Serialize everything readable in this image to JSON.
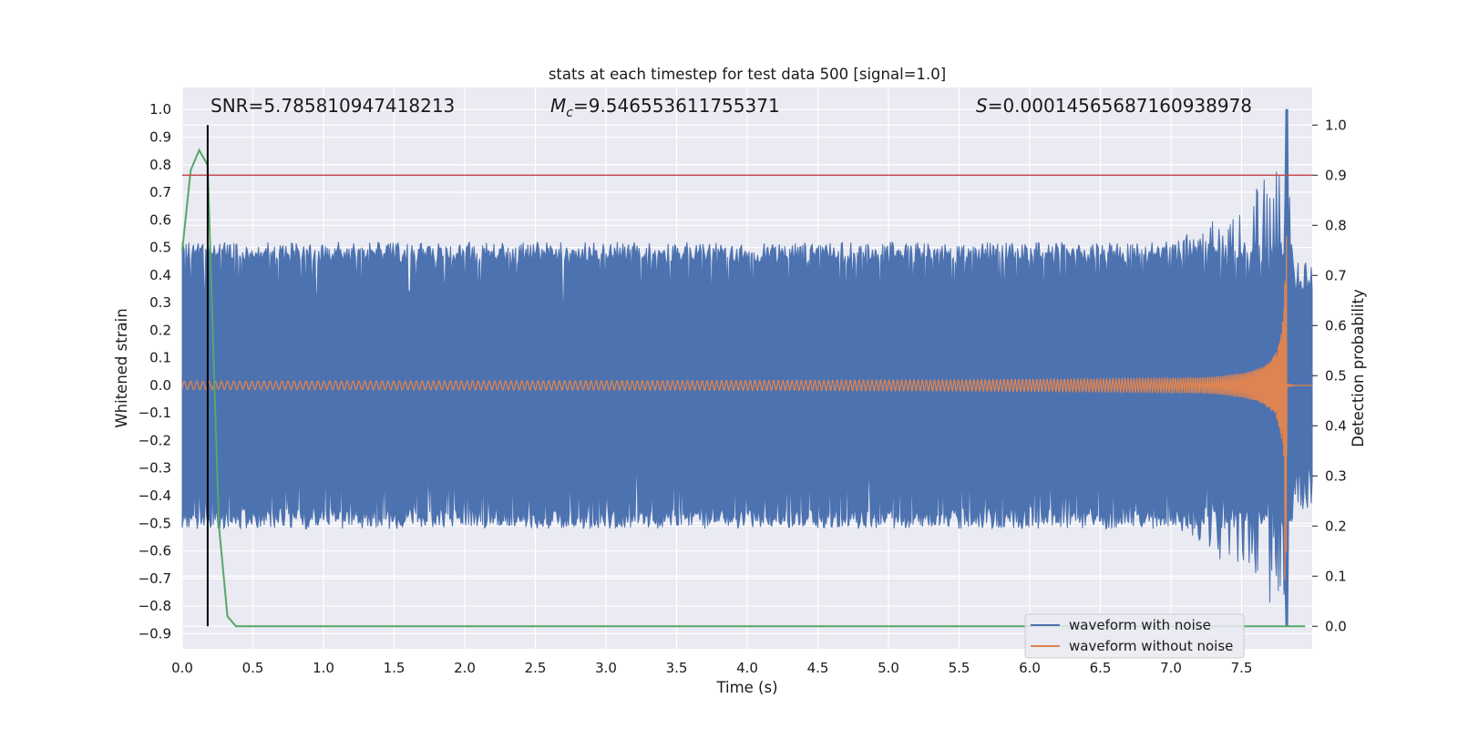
{
  "chart_data": {
    "type": "line",
    "title": "stats at each timestep for test data 500 [signal=1.0]",
    "xlabel": "Time (s)",
    "ylabel_left": "Whitened strain",
    "ylabel_right": "Detection probability",
    "xlim": [
      0.0,
      8.0
    ],
    "ylim_left": [
      -0.955,
      1.08
    ],
    "ylim_right": [
      -0.045,
      1.075
    ],
    "x_ticks": [
      "0.0",
      "0.5",
      "1.0",
      "1.5",
      "2.0",
      "2.5",
      "3.0",
      "3.5",
      "4.0",
      "4.5",
      "5.0",
      "5.5",
      "6.0",
      "6.5",
      "7.0",
      "7.5"
    ],
    "y_left_ticks": [
      "1.0",
      "0.9",
      "0.8",
      "0.7",
      "0.6",
      "0.5",
      "0.4",
      "0.3",
      "0.2",
      "0.1",
      "0.0",
      "−0.1",
      "−0.2",
      "−0.3",
      "−0.4",
      "−0.5",
      "−0.6",
      "−0.7",
      "−0.8",
      "−0.9"
    ],
    "y_right_ticks": [
      "1.0",
      "0.9",
      "0.8",
      "0.7",
      "0.6",
      "0.5",
      "0.4",
      "0.3",
      "0.2",
      "0.1",
      "0.0"
    ],
    "grid": true,
    "legend_position": "lower-right",
    "annotations": {
      "snr_prefix": "SNR=",
      "snr_value": "5.785810947418213",
      "mc_symbol": "M",
      "mc_subscript": "c",
      "mc_value": "=9.546553611755371",
      "s_symbol": "S",
      "s_value": "=0.00014565687160938978"
    },
    "series": [
      {
        "name": "waveform with noise",
        "axis": "left",
        "color": "#4c72b0",
        "description_values": {
          "typical_envelope": [
            -0.52,
            0.5
          ],
          "merger_time": 7.82,
          "merger_extremes": [
            -0.87,
            1.0
          ]
        }
      },
      {
        "name": "waveform without noise",
        "axis": "left",
        "color": "#dd8452",
        "description_values": {
          "start_amplitude": 0.015,
          "merger_time": 7.82,
          "peak_amplitude": [
            -0.78,
            0.67
          ]
        }
      },
      {
        "axis": "right",
        "color": "#55a868",
        "x": [
          0.0,
          0.06,
          0.12,
          0.18,
          0.22,
          0.26,
          0.32,
          0.38,
          7.95
        ],
        "y": [
          0.75,
          0.91,
          0.95,
          0.92,
          0.55,
          0.2,
          0.02,
          0.0,
          0.0
        ]
      }
    ],
    "threshold_line": {
      "axis": "right",
      "value": 0.9,
      "color": "#c44e52"
    },
    "marker_line": {
      "x": 0.18,
      "y_from": 0.0,
      "y_to": 1.0,
      "axis": "right",
      "color": "#000000"
    }
  }
}
